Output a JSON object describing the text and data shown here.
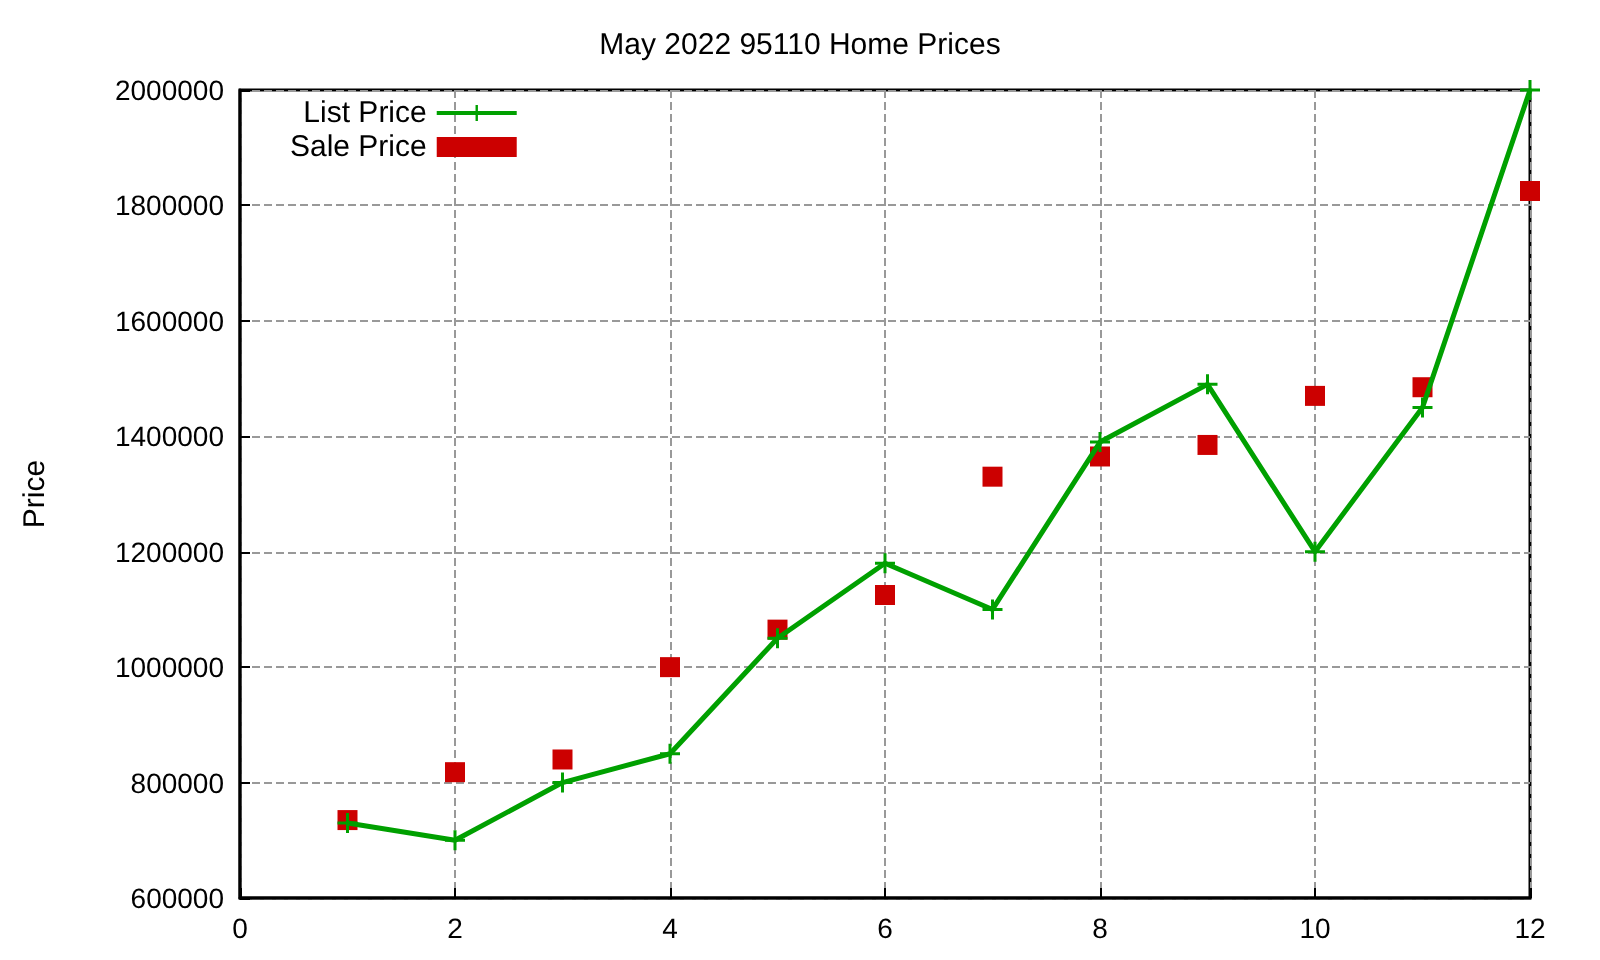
{
  "chart_data": {
    "type": "line",
    "title": "May 2022 95110 Home Prices",
    "ylabel": "Price",
    "x": [
      1,
      2,
      3,
      4,
      5,
      6,
      7,
      8,
      9,
      10,
      11,
      12
    ],
    "xlim": [
      0,
      12
    ],
    "xticks": [
      0,
      2,
      4,
      6,
      8,
      10,
      12
    ],
    "ylim": [
      600000,
      2000000
    ],
    "yticks": [
      600000,
      800000,
      1000000,
      1200000,
      1400000,
      1600000,
      1800000,
      2000000
    ],
    "grid": true,
    "legend": "top left",
    "series": [
      {
        "name": "List Price",
        "color": "#00a000",
        "marker": "cross",
        "line_style": "solid",
        "values": [
          730000,
          700000,
          800000,
          850000,
          1050000,
          1180000,
          1100000,
          1390000,
          1490000,
          1200000,
          1450000,
          2000000
        ]
      },
      {
        "name": "Sale Price",
        "type": "scatter",
        "color": "#cc0000",
        "marker": "square",
        "values": [
          735000,
          818000,
          840000,
          1000000,
          1065000,
          1125000,
          1330000,
          1365000,
          1385000,
          1470000,
          1485000,
          1825000
        ]
      }
    ]
  }
}
